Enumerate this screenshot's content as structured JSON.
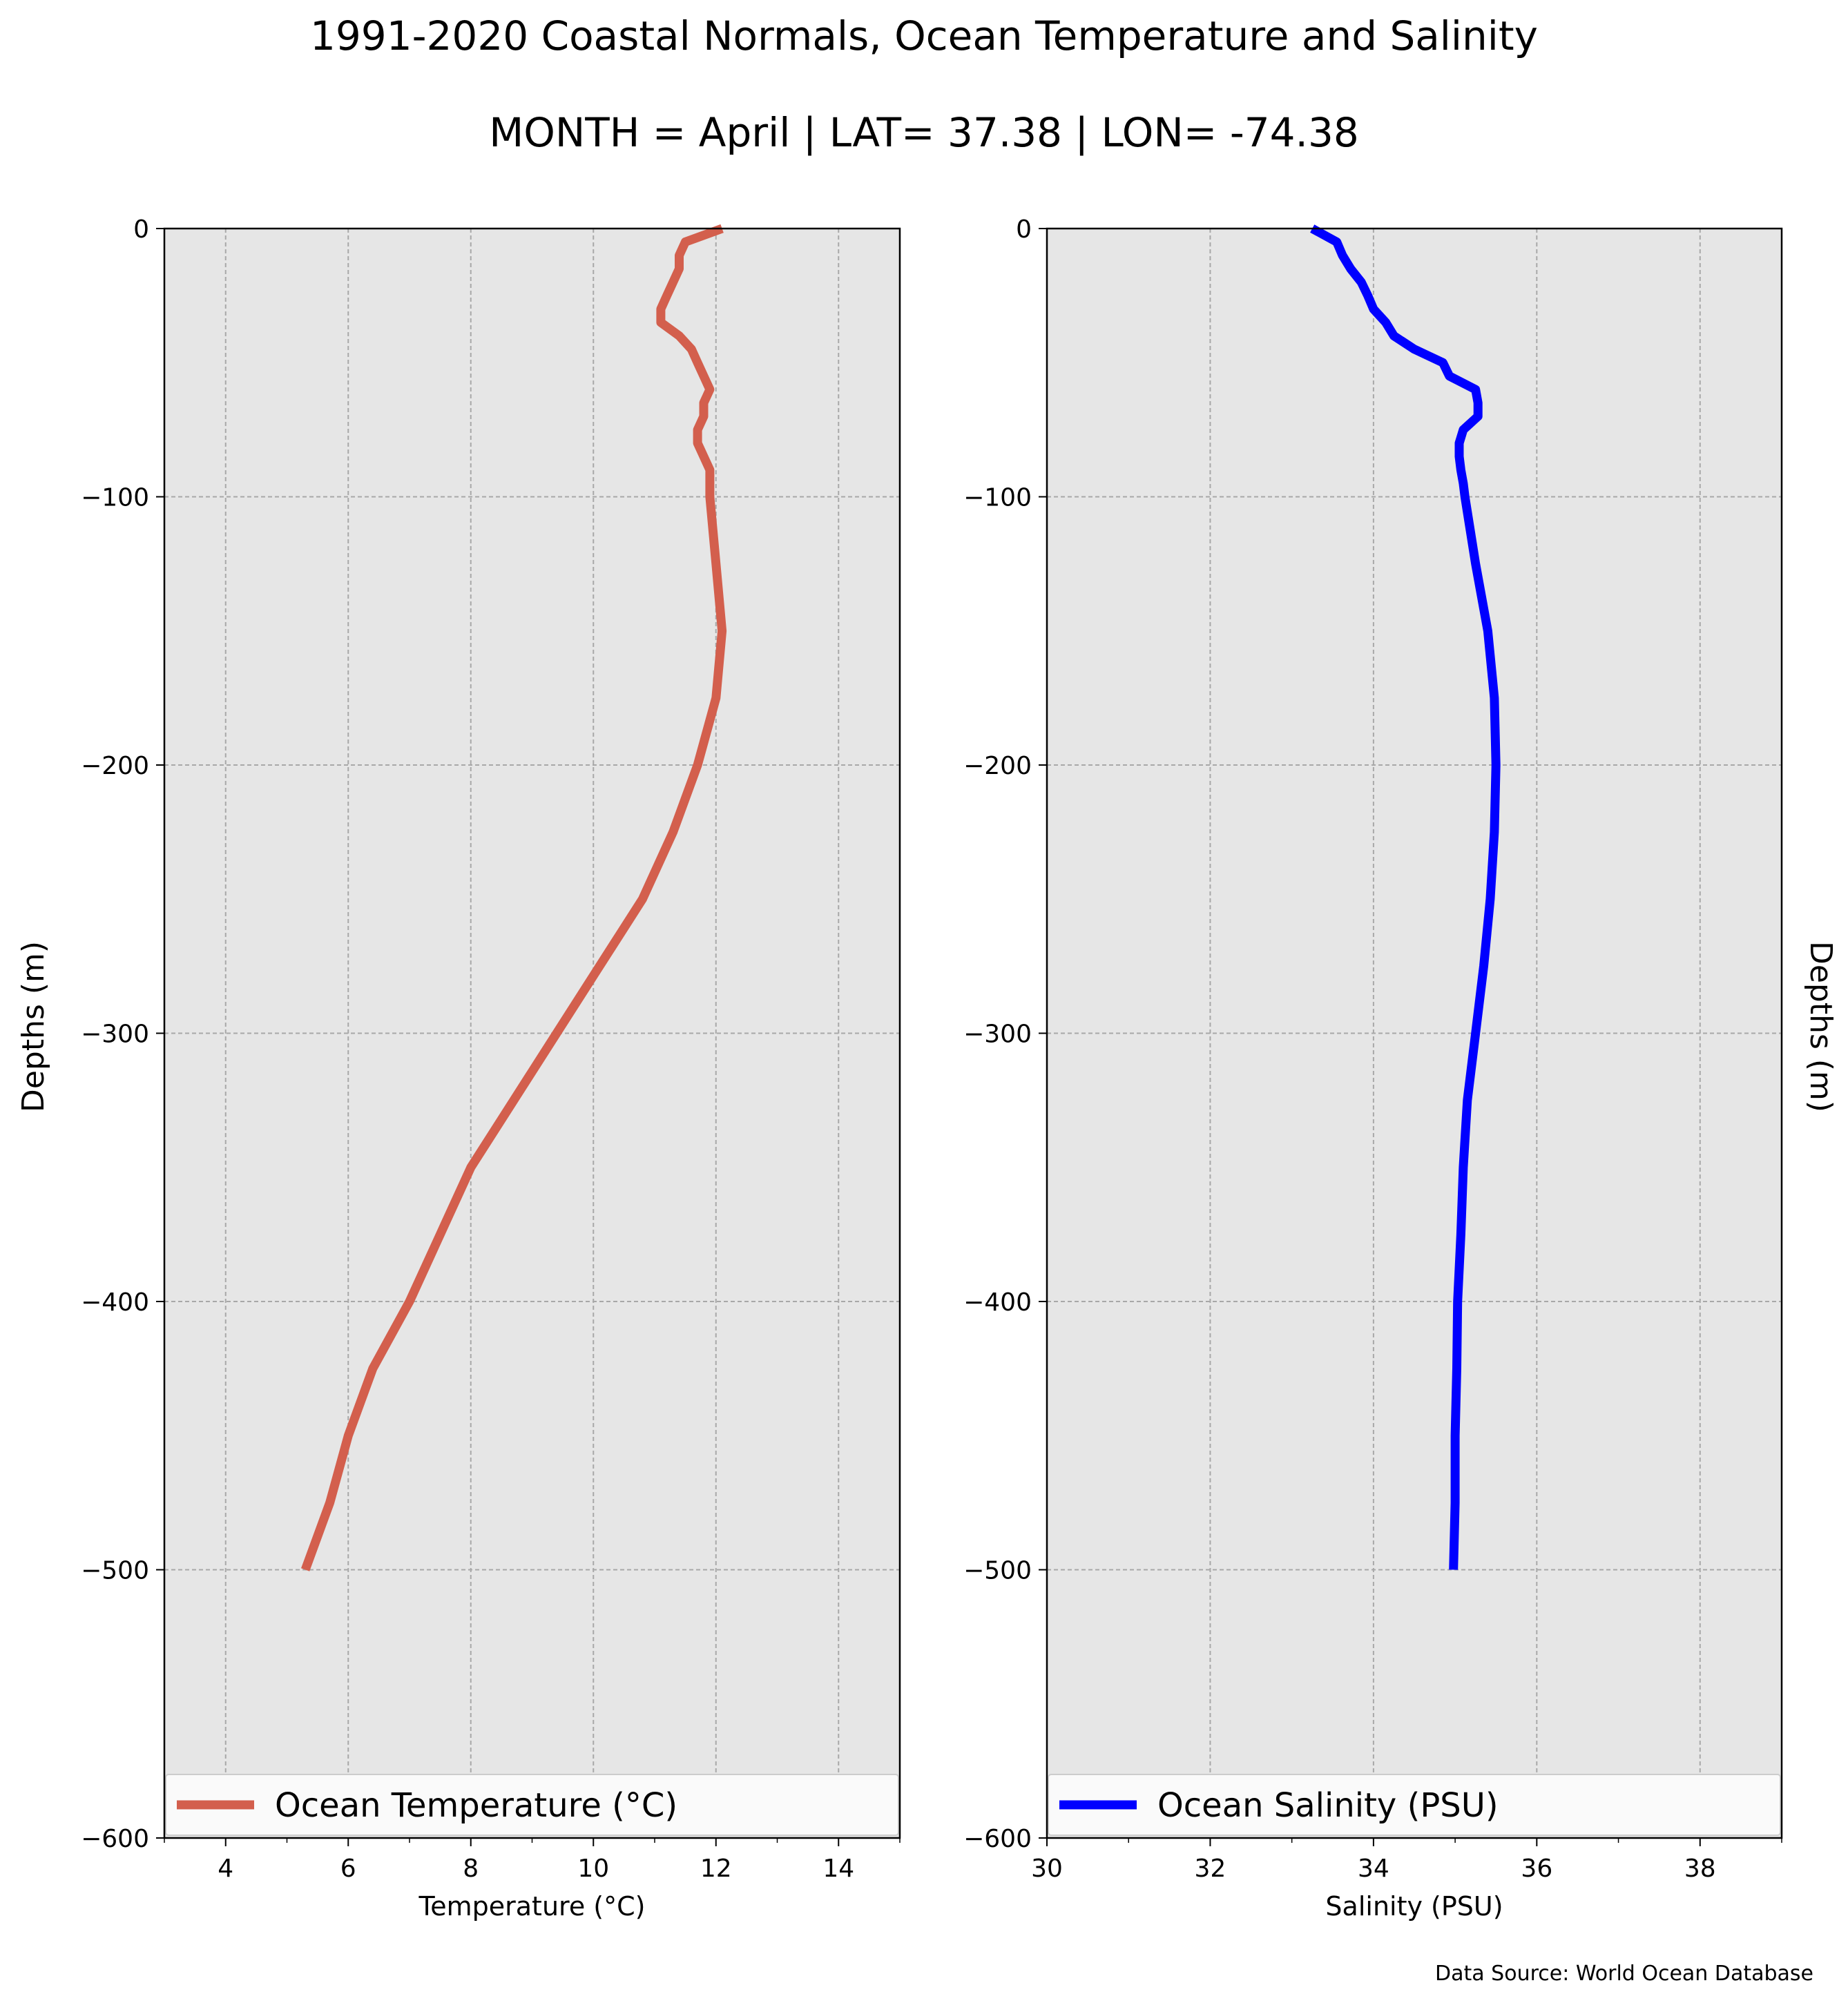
{
  "title": "1991-2020 Coastal Normals, Ocean Temperature and Salinity",
  "subtitle": "MONTH = April | LAT= 37.38 | LON= -74.38",
  "source": "Data Source: World Ocean Database",
  "chart_data": [
    {
      "type": "line",
      "xlabel": "Temperature ($^\\circ$C)",
      "xlabel_display": "Temperature (°C)",
      "ylabel": "Depths (m)",
      "xlim": [
        3,
        15
      ],
      "ylim": [
        -600,
        0
      ],
      "xticks": [
        4,
        6,
        8,
        10,
        12,
        14
      ],
      "yticks": [
        0,
        -100,
        -200,
        -300,
        -400,
        -500,
        -600
      ],
      "grid": true,
      "legend_placement": "bottom",
      "color": "#d35f4d",
      "series": [
        {
          "name": "Ocean Temperature (°C)",
          "depth": [
            0,
            -5,
            -10,
            -15,
            -20,
            -25,
            -30,
            -35,
            -40,
            -45,
            -50,
            -55,
            -60,
            -65,
            -70,
            -75,
            -80,
            -85,
            -90,
            -95,
            -100,
            -125,
            -150,
            -175,
            -200,
            -225,
            -250,
            -275,
            -300,
            -325,
            -350,
            -375,
            -400,
            -425,
            -450,
            -475,
            -500
          ],
          "values": [
            12.1,
            11.5,
            11.4,
            11.4,
            11.3,
            11.2,
            11.1,
            11.1,
            11.4,
            11.6,
            11.7,
            11.8,
            11.9,
            11.8,
            11.8,
            11.7,
            11.7,
            11.8,
            11.9,
            11.9,
            11.9,
            12.0,
            12.1,
            12.0,
            11.7,
            11.3,
            10.8,
            10.1,
            9.4,
            8.7,
            8.0,
            7.5,
            7.0,
            6.4,
            6.0,
            5.7,
            5.3
          ]
        }
      ]
    },
    {
      "type": "line",
      "xlabel": "Salinity (PSU)",
      "ylabel": "Depths (m)",
      "xlim": [
        30,
        39
      ],
      "ylim": [
        -600,
        0
      ],
      "xticks": [
        30,
        32,
        34,
        36,
        38
      ],
      "yticks": [
        0,
        -100,
        -200,
        -300,
        -400,
        -500,
        -600
      ],
      "grid": true,
      "legend_placement": "bottom",
      "color": "#0000ff",
      "series": [
        {
          "name": "Ocean Salinity (PSU)",
          "depth": [
            0,
            -5,
            -10,
            -15,
            -20,
            -25,
            -30,
            -35,
            -40,
            -45,
            -50,
            -55,
            -60,
            -65,
            -70,
            -75,
            -80,
            -85,
            -90,
            -95,
            -100,
            -125,
            -150,
            -175,
            -200,
            -225,
            -250,
            -275,
            -300,
            -325,
            -350,
            -375,
            -400,
            -425,
            -450,
            -475,
            -500
          ],
          "values": [
            33.25,
            33.55,
            33.62,
            33.72,
            33.85,
            33.93,
            34.0,
            34.15,
            34.25,
            34.5,
            34.85,
            34.93,
            35.25,
            35.28,
            35.28,
            35.1,
            35.05,
            35.05,
            35.07,
            35.1,
            35.12,
            35.25,
            35.4,
            35.48,
            35.5,
            35.48,
            35.43,
            35.35,
            35.25,
            35.15,
            35.1,
            35.07,
            35.03,
            35.02,
            35.0,
            35.0,
            34.98
          ]
        }
      ]
    }
  ]
}
